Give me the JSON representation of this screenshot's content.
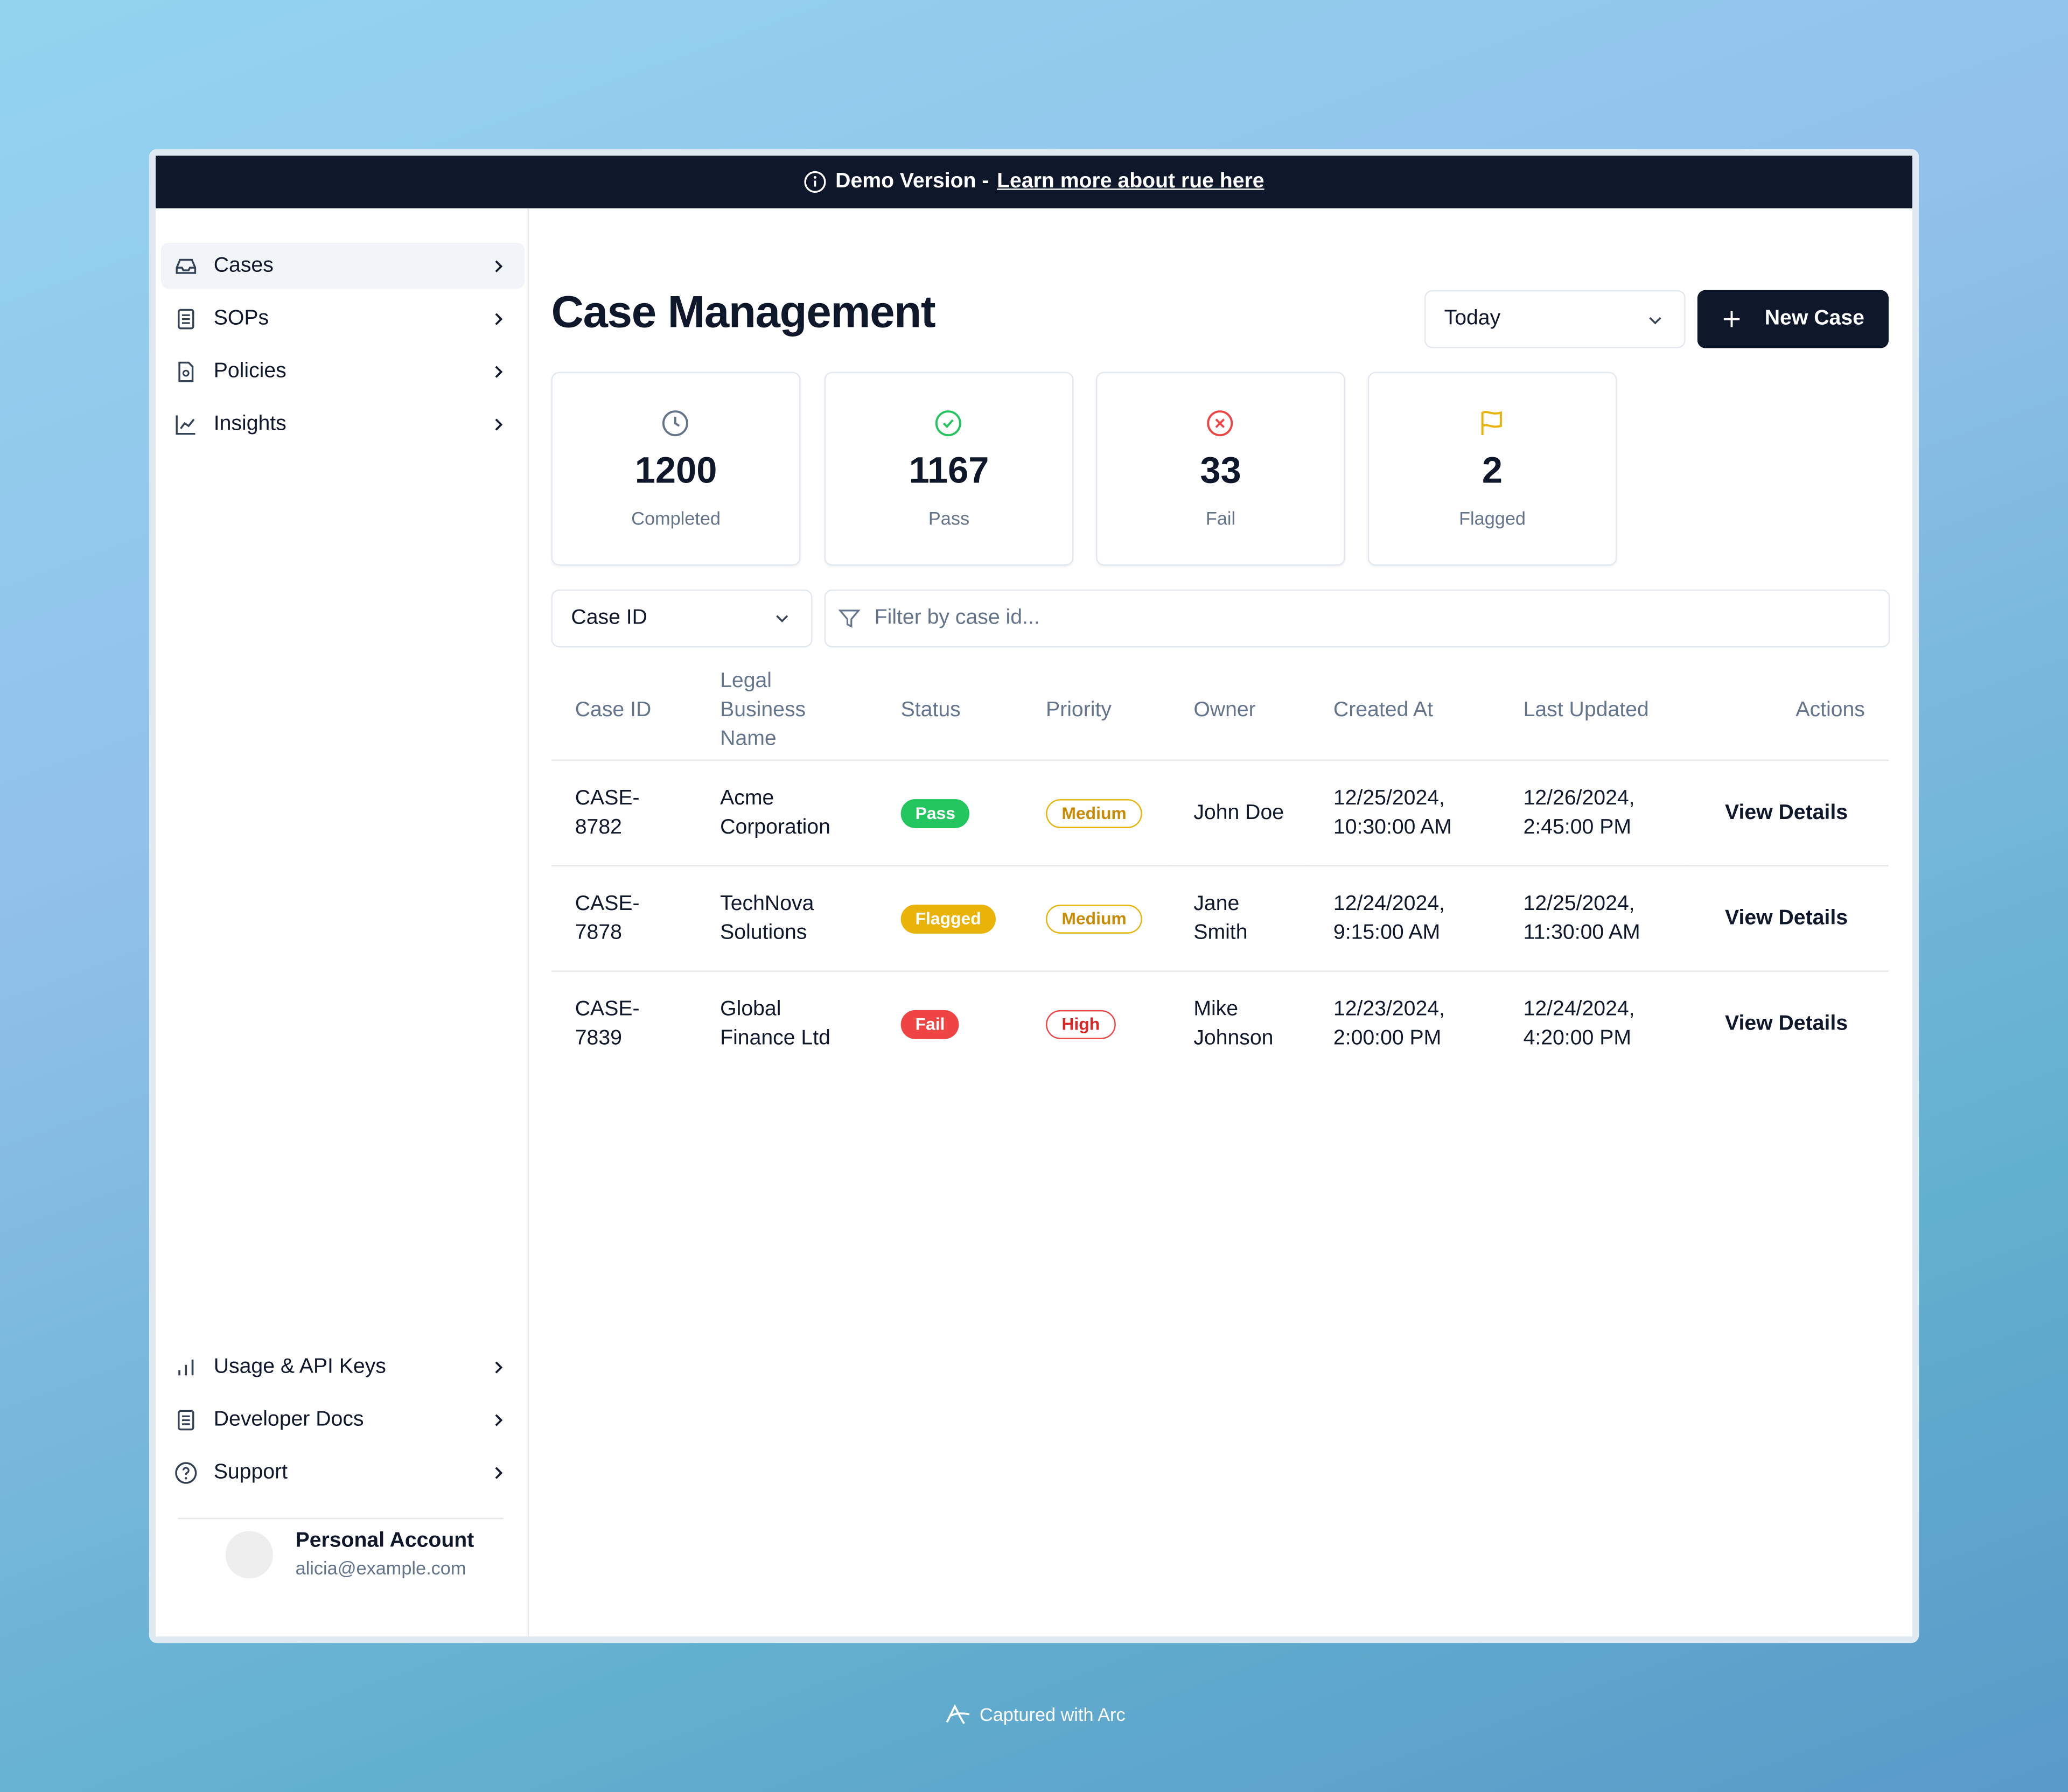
{
  "banner": {
    "text": "Demo Version -",
    "link": "Learn more about rue here"
  },
  "sidebar": {
    "nav": [
      "Cases",
      "SOPs",
      "Policies",
      "Insights"
    ],
    "footer_nav": [
      "Usage & API Keys",
      "Developer Docs",
      "Support"
    ],
    "account": {
      "name": "Personal Account",
      "email": "alicia@example.com"
    }
  },
  "header": {
    "title": "Case Management",
    "range": "Today",
    "new_button": "New Case"
  },
  "stats": [
    {
      "value": 1200,
      "label": "Completed"
    },
    {
      "value": 1167,
      "label": "Pass"
    },
    {
      "value": 33,
      "label": "Fail"
    },
    {
      "value": 2,
      "label": "Flagged"
    }
  ],
  "filter": {
    "field": "Case ID",
    "placeholder": "Filter by case id..."
  },
  "table": {
    "columns": [
      "Case ID",
      "Legal Business Name",
      "Status",
      "Priority",
      "Owner",
      "Created At",
      "Last Updated",
      "Actions"
    ],
    "rows": [
      [
        "CASE-8782",
        "Acme Corporation",
        "Pass",
        "Medium",
        "John Doe",
        "12/25/2024, 10:30:00 AM",
        "12/26/2024, 2:45:00 PM",
        "View Details"
      ],
      [
        "CASE-7878",
        "TechNova Solutions",
        "Flagged",
        "Medium",
        "Jane Smith",
        "12/24/2024, 9:15:00 AM",
        "12/25/2024, 11:30:00 AM",
        "View Details"
      ],
      [
        "CASE-7839",
        "Global Finance Ltd",
        "Fail",
        "High",
        "Mike Johnson",
        "12/23/2024, 2:00:00 PM",
        "12/24/2024, 4:20:00 PM",
        "View Details"
      ]
    ]
  },
  "footer": "Captured with Arc"
}
